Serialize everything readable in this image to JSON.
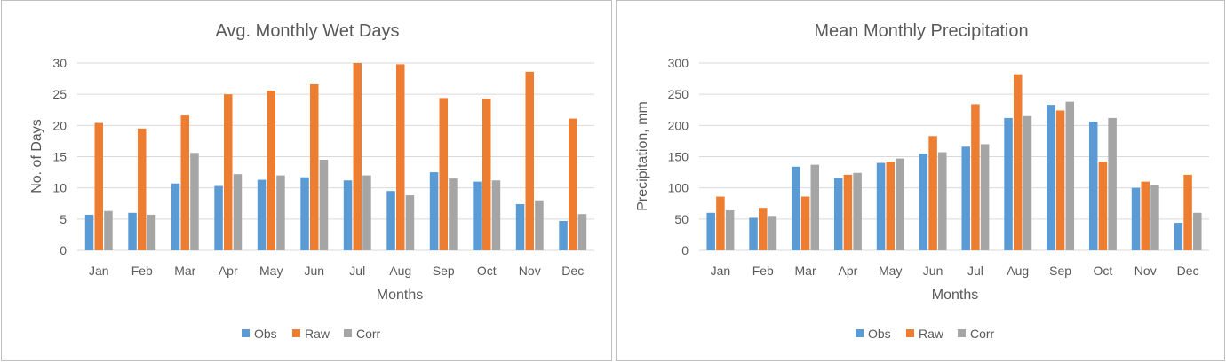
{
  "colors": {
    "Obs": "#5b9bd5",
    "Raw": "#ed7d31",
    "Corr": "#a5a5a5"
  },
  "chart_data": [
    {
      "type": "bar",
      "title": "Avg. Monthly Wet Days",
      "xlabel": "Months",
      "ylabel": "No. of Days",
      "ylim": [
        0,
        30
      ],
      "yticks": [
        "0",
        "5",
        "10",
        "15",
        "20",
        "25",
        "30"
      ],
      "grid": true,
      "legend": "bottom",
      "categories": [
        "Jan",
        "Feb",
        "Mar",
        "Apr",
        "May",
        "Jun",
        "Jul",
        "Aug",
        "Sep",
        "Oct",
        "Nov",
        "Dec"
      ],
      "series": [
        {
          "name": "Obs",
          "values": [
            5.7,
            6.0,
            10.7,
            10.3,
            11.3,
            11.7,
            11.2,
            9.5,
            12.5,
            11.0,
            7.4,
            4.7
          ]
        },
        {
          "name": "Raw",
          "values": [
            20.4,
            19.5,
            21.6,
            25.0,
            25.6,
            26.6,
            30.0,
            29.8,
            24.4,
            24.3,
            28.6,
            21.1
          ]
        },
        {
          "name": "Corr",
          "values": [
            6.3,
            5.7,
            15.6,
            12.2,
            12.0,
            14.5,
            12.0,
            8.8,
            11.5,
            11.2,
            8.0,
            5.8
          ]
        }
      ]
    },
    {
      "type": "bar",
      "title": "Mean Monthly Precipitation",
      "xlabel": "Months",
      "ylabel": "Precipitation, mm",
      "ylim": [
        0,
        300
      ],
      "yticks": [
        "0",
        "50",
        "100",
        "150",
        "200",
        "250",
        "300"
      ],
      "grid": true,
      "legend": "bottom",
      "categories": [
        "Jan",
        "Feb",
        "Mar",
        "Apr",
        "May",
        "Jun",
        "Jul",
        "Aug",
        "Sep",
        "Oct",
        "Nov",
        "Dec"
      ],
      "series": [
        {
          "name": "Obs",
          "values": [
            60,
            52,
            134,
            116,
            140,
            155,
            166,
            212,
            233,
            206,
            100,
            44
          ]
        },
        {
          "name": "Raw",
          "values": [
            86,
            68,
            86,
            121,
            142,
            183,
            234,
            282,
            224,
            142,
            110,
            121
          ]
        },
        {
          "name": "Corr",
          "values": [
            64,
            55,
            137,
            124,
            147,
            157,
            170,
            215,
            238,
            212,
            105,
            60
          ]
        }
      ]
    }
  ]
}
